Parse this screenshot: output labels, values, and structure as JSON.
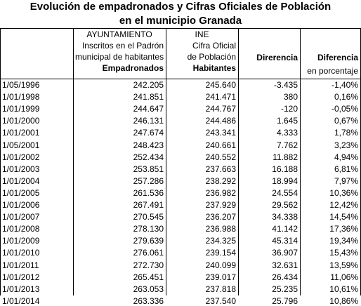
{
  "title": [
    "Evolución de empadronados y Cifras Oficiales de Población",
    "en el municipio Granada"
  ],
  "header": {
    "ayuntamiento": [
      "AYUNTAMIENTO",
      "Inscritos en el Padrón",
      "municipal de habitantes",
      "Empadronados"
    ],
    "ine": [
      "INE",
      "Cifra Oficial",
      "de Población",
      "Habitantes"
    ],
    "diferencia": "Direrencia",
    "porcentaje": [
      "Diferencia",
      "en porcentaje"
    ]
  },
  "rows": [
    [
      "1/05/1996",
      "242.205",
      "245.640",
      "-3.435",
      "-1,40%"
    ],
    [
      "1/01/1998",
      "241.851",
      "241.471",
      "380",
      "0,16%"
    ],
    [
      "1/01/1999",
      "244.647",
      "244.767",
      "-120",
      "-0,05%"
    ],
    [
      "1/01/2000",
      "246.131",
      "244.486",
      "1.645",
      "0,67%"
    ],
    [
      "1/01/2001",
      "247.674",
      "243.341",
      "4.333",
      "1,78%"
    ],
    [
      "1/05/2001",
      "248.423",
      "240.661",
      "7.762",
      "3,23%"
    ],
    [
      "1/01/2002",
      "252.434",
      "240.552",
      "11.882",
      "4,94%"
    ],
    [
      "1/01/2003",
      "253.851",
      "237.663",
      "16.188",
      "6,81%"
    ],
    [
      "1/01/2004",
      "257.286",
      "238.292",
      "18.994",
      "7,97%"
    ],
    [
      "1/01/2005",
      "261.536",
      "236.982",
      "24.554",
      "10,36%"
    ],
    [
      "1/01/2006",
      "267.491",
      "237.929",
      "29.562",
      "12,42%"
    ],
    [
      "1/01/2007",
      "270.545",
      "236.207",
      "34.338",
      "14,54%"
    ],
    [
      "1/01/2008",
      "278.130",
      "236.988",
      "41.142",
      "17,36%"
    ],
    [
      "1/01/2009",
      "279.639",
      "234.325",
      "45.314",
      "19,34%"
    ],
    [
      "1/01/2010",
      "276.061",
      "239.154",
      "36.907",
      "15,43%"
    ],
    [
      "1/01/2011",
      "272.730",
      "240.099",
      "32.631",
      "13,59%"
    ],
    [
      "1/01/2012",
      "265.451",
      "239.017",
      "26.434",
      "11,06%"
    ],
    [
      "1/01/2013",
      "263.053",
      "237.818",
      "25.235",
      "10,61%"
    ],
    [
      "1/01/2014",
      "263.336",
      "237.540",
      "25.796",
      "10,86%"
    ]
  ]
}
